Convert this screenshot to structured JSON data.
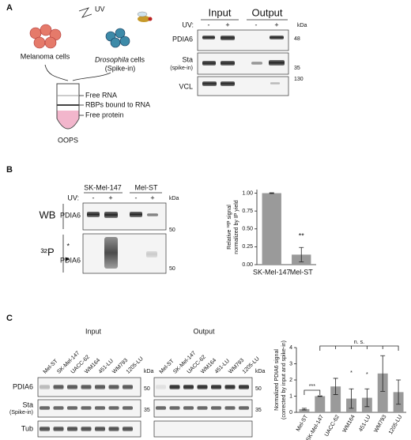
{
  "panels": {
    "a": {
      "label": "A",
      "uv": "UV",
      "melanoma": "Melanoma cells",
      "drosophila": "Drosophila",
      "drosophila_rest": "cells",
      "spike_in": "(Spike-in)",
      "free_rna": "Free RNA",
      "rbps": "RBPs bound to RNA",
      "free_protein": "Free protein",
      "oops": "OOPS",
      "blot": {
        "groups": [
          "Input",
          "Output"
        ],
        "uv_label": "UV:",
        "uv_states": [
          "-",
          "+",
          "-",
          "+"
        ],
        "kda": "kDa",
        "rows": [
          "PDIA6",
          "Sta",
          "VCL"
        ],
        "row_sub": "(spike-in)",
        "markers": [
          "48",
          "35",
          "130"
        ]
      }
    },
    "b": {
      "label": "B",
      "groups": [
        "SK-Mel-147",
        "Mel-ST"
      ],
      "uv_label": "UV:",
      "uv_states": [
        "-",
        "+",
        "-",
        "+"
      ],
      "kda": "kDa",
      "wb": "WB",
      "p32": "³²P",
      "row": "PDIA6",
      "star": "*",
      "arrow": "▶",
      "markers": [
        "50",
        "50"
      ]
    },
    "c": {
      "label": "C",
      "groups": [
        "Input",
        "Output"
      ],
      "lanes": [
        "Mel-ST",
        "SK-Mel-147",
        "UACC-62",
        "WM164",
        "451-LU",
        "WM793",
        "1205-LU"
      ],
      "kda": "kDa",
      "rows": [
        "PDIA6",
        "Sta",
        "Tub"
      ],
      "row_sub": "(Spike-in)",
      "markers": [
        "50",
        "35"
      ]
    }
  },
  "chart_data": [
    {
      "type": "bar",
      "y_label": "Relative ³²P signal",
      "y_label_2": "normalized by IP yield",
      "categories": [
        "SK-Mel-147",
        "Mel-ST"
      ],
      "values": [
        1.0,
        0.14
      ],
      "errors": [
        0.005,
        0.1
      ],
      "color": "#9a9a9a",
      "ylim": [
        0,
        1.05
      ],
      "yticks": [
        {
          "value": 0,
          "label": "0.00"
        },
        {
          "value": 0.25,
          "label": "0.25"
        },
        {
          "value": 0.5,
          "label": "0.50"
        },
        {
          "value": 0.75,
          "label": "0.75"
        },
        {
          "value": 1,
          "label": "1.00"
        }
      ],
      "annotations": [
        "**"
      ]
    },
    {
      "type": "bar",
      "y_label": "Normalized PDIA6 signal",
      "y_label_2": "(corrected by input and spike-in)",
      "categories": [
        "Mel-ST",
        "SK-Mel-147",
        "UACC-62",
        "WM164",
        "451-LU",
        "WM793",
        "1205-LU"
      ],
      "values": [
        0.2,
        1.0,
        1.6,
        0.85,
        0.9,
        2.4,
        1.25
      ],
      "errors": [
        0.05,
        0.02,
        0.5,
        0.6,
        0.55,
        1.1,
        0.75
      ],
      "color": "#9a9a9a",
      "ylim": [
        0,
        4
      ],
      "yticks": [
        0,
        1,
        2,
        3,
        4
      ],
      "annotations": [
        "***",
        "n. s.",
        "*",
        "*"
      ]
    }
  ]
}
